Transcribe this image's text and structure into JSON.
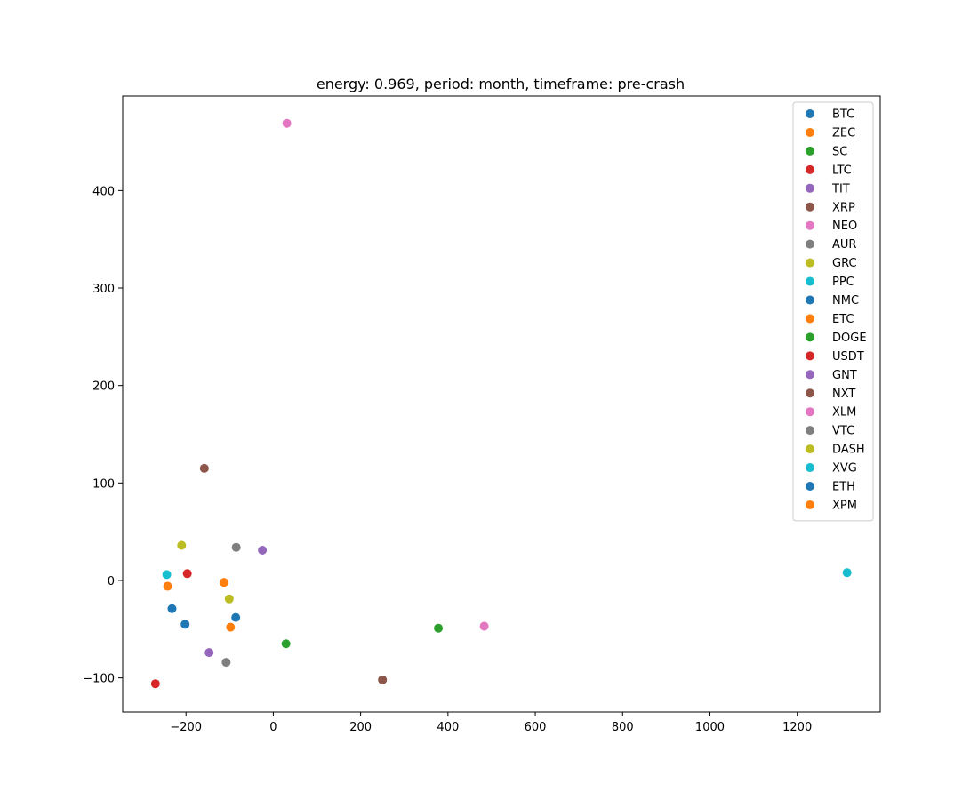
{
  "chart_data": {
    "type": "scatter",
    "title": "energy: 0.969, period: month, timeframe: pre-crash",
    "xlabel": "",
    "ylabel": "",
    "xlim": [
      -345,
      1390
    ],
    "ylim": [
      -135,
      497
    ],
    "xticks": [
      -200,
      0,
      200,
      400,
      600,
      800,
      1000,
      1200
    ],
    "xtick_labels": [
      "−200",
      "0",
      "200",
      "400",
      "600",
      "800",
      "1000",
      "1200"
    ],
    "yticks": [
      -100,
      0,
      100,
      200,
      300,
      400
    ],
    "ytick_labels": [
      "−100",
      "0",
      "100",
      "200",
      "300",
      "400"
    ],
    "grid": false,
    "legend_position": "top-right",
    "series": [
      {
        "name": "BTC",
        "color": "#1f77b4",
        "x": -232,
        "y": -29
      },
      {
        "name": "ZEC",
        "color": "#ff7f0e",
        "x": -113,
        "y": -2
      },
      {
        "name": "SC",
        "color": "#2ca02c",
        "x": 378,
        "y": -49
      },
      {
        "name": "LTC",
        "color": "#d62728",
        "x": -197,
        "y": 7
      },
      {
        "name": "TIT",
        "color": "#9467bd",
        "x": -25,
        "y": 31
      },
      {
        "name": "XRP",
        "color": "#8c564b",
        "x": 250,
        "y": -102
      },
      {
        "name": "NEO",
        "color": "#e377c2",
        "x": 483,
        "y": -47
      },
      {
        "name": "AUR",
        "color": "#7f7f7f",
        "x": -108,
        "y": -84
      },
      {
        "name": "GRC",
        "color": "#bcbd22",
        "x": -101,
        "y": -19
      },
      {
        "name": "PPC",
        "color": "#17becf",
        "x": 1314,
        "y": 8
      },
      {
        "name": "NMC",
        "color": "#1f77b4",
        "x": -202,
        "y": -45
      },
      {
        "name": "ETC",
        "color": "#ff7f0e",
        "x": -98,
        "y": -48
      },
      {
        "name": "DOGE",
        "color": "#2ca02c",
        "x": 29,
        "y": -65
      },
      {
        "name": "USDT",
        "color": "#d62728",
        "x": -270,
        "y": -106
      },
      {
        "name": "GNT",
        "color": "#9467bd",
        "x": -147,
        "y": -74
      },
      {
        "name": "NXT",
        "color": "#8c564b",
        "x": -158,
        "y": 115
      },
      {
        "name": "XLM",
        "color": "#e377c2",
        "x": 31,
        "y": 469
      },
      {
        "name": "VTC",
        "color": "#7f7f7f",
        "x": -85,
        "y": 34
      },
      {
        "name": "DASH",
        "color": "#bcbd22",
        "x": -210,
        "y": 36
      },
      {
        "name": "XVG",
        "color": "#17becf",
        "x": -244,
        "y": 6
      },
      {
        "name": "ETH",
        "color": "#1f77b4",
        "x": -86,
        "y": -38
      },
      {
        "name": "XPM",
        "color": "#ff7f0e",
        "x": -242,
        "y": -6
      }
    ]
  }
}
